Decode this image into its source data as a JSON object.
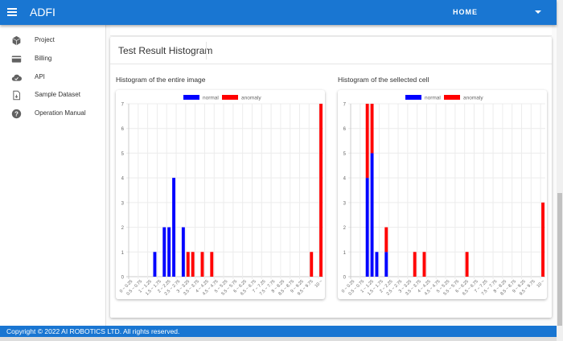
{
  "header": {
    "title": "ADFI",
    "home_label": "HOME",
    "menu_icon": "hamburger-icon",
    "dropdown_icon": "caret-down-icon"
  },
  "sidebar": {
    "items": [
      {
        "label": "Project",
        "icon": "cube-icon"
      },
      {
        "label": "Billing",
        "icon": "credit-card-icon"
      },
      {
        "label": "API",
        "icon": "cloud-check-icon"
      },
      {
        "label": "Sample Dataset",
        "icon": "file-download-icon"
      },
      {
        "label": "Operation Manual",
        "icon": "help-circle-icon"
      }
    ]
  },
  "main": {
    "card_title": "Test Result Histogram"
  },
  "footer": {
    "text": "Copyright © 2022 AI ROBOTICS LTD. All rights reserved."
  },
  "colors": {
    "brand": "#1976d2",
    "normal": "#0000ff",
    "anomaly": "#ff0000"
  },
  "chart_data": [
    {
      "type": "bar",
      "stacked": true,
      "title": "Histogram of the entire image",
      "ylim": [
        0,
        7
      ],
      "grid": true,
      "legend": "top",
      "series": [
        {
          "name": "normal",
          "color": "#0000ff",
          "values": [
            0,
            0,
            0,
            0,
            0,
            1,
            0,
            2,
            2,
            4,
            0,
            2,
            0,
            0,
            0,
            0,
            0,
            0,
            0,
            0,
            0,
            0,
            0,
            0,
            0,
            0,
            0,
            0,
            0,
            0,
            0,
            0,
            0,
            0,
            0,
            0,
            0,
            0,
            0,
            0,
            0
          ]
        },
        {
          "name": "anomaly",
          "color": "#ff0000",
          "values": [
            0,
            0,
            0,
            0,
            0,
            0,
            0,
            0,
            0,
            0,
            0,
            0,
            1,
            1,
            0,
            1,
            0,
            1,
            0,
            0,
            0,
            0,
            0,
            0,
            0,
            0,
            0,
            0,
            0,
            0,
            0,
            0,
            0,
            0,
            0,
            0,
            0,
            0,
            1,
            0,
            7
          ]
        }
      ]
    },
    {
      "type": "bar",
      "stacked": true,
      "title": "Histogram of the sellected cell",
      "ylim": [
        0,
        7
      ],
      "grid": true,
      "legend": "top",
      "series": [
        {
          "name": "normal",
          "color": "#0000ff",
          "values": [
            0,
            0,
            0,
            4,
            5,
            1,
            0,
            1,
            0,
            0,
            0,
            0,
            0,
            0,
            0,
            0,
            0,
            0,
            0,
            0,
            0,
            0,
            0,
            0,
            0,
            0,
            0,
            0,
            0,
            0,
            0,
            0,
            0,
            0,
            0,
            0,
            0,
            0,
            0,
            0,
            0
          ]
        },
        {
          "name": "anomaly",
          "color": "#ff0000",
          "values": [
            0,
            0,
            0,
            3,
            2,
            0,
            0,
            1,
            0,
            0,
            0,
            0,
            0,
            1,
            0,
            1,
            0,
            0,
            0,
            0,
            0,
            0,
            0,
            0,
            1,
            0,
            0,
            0,
            0,
            0,
            0,
            0,
            0,
            0,
            0,
            0,
            0,
            0,
            0,
            0,
            3
          ]
        }
      ]
    }
  ],
  "x_tick_labels": [
    "0 ~ 0.25",
    "0.5 ~ 0.75",
    "1 ~ 1.25",
    "1.5 ~ 1.75",
    "2 ~ 2.25",
    "2.5 ~ 2.75",
    "3 ~ 3.25",
    "3.5 ~ 3.75",
    "4 ~ 4.25",
    "4.5 ~ 4.75",
    "5 ~ 5.25",
    "5.5 ~ 5.75",
    "6 ~ 6.25",
    "6.5 ~ 6.75",
    "7 ~ 7.25",
    "7.5 ~ 7.75",
    "8 ~ 8.25",
    "8.5 ~ 8.75",
    "9 ~ 9.25",
    "9.5 ~ 9.75",
    "10 ~"
  ],
  "y_tick_labels": [
    "0",
    "1",
    "2",
    "3",
    "4",
    "5",
    "6",
    "7"
  ]
}
